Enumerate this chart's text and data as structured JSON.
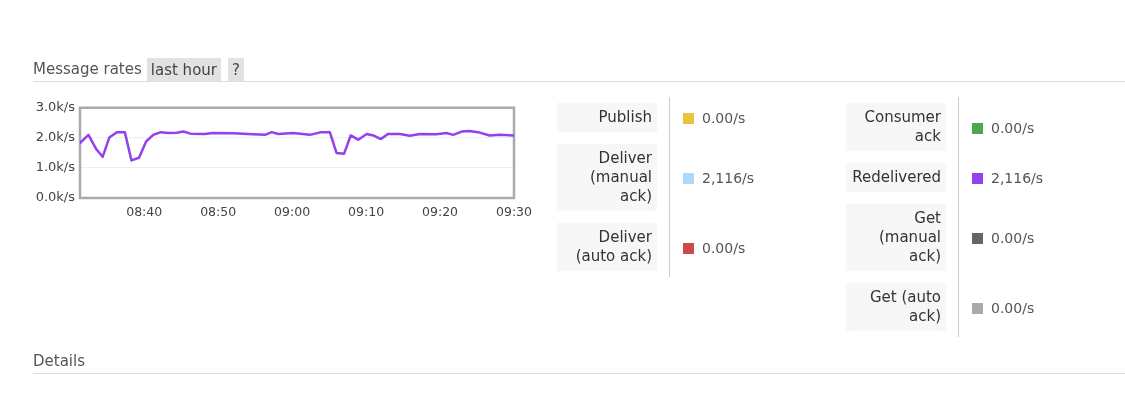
{
  "chart_data": {
    "type": "line",
    "title": "Message rates",
    "subtitle": "last hour",
    "annotations": [
      "?",
      "0.00/s",
      "2,116/s",
      "0.00/s",
      "0.00/s",
      "2,116/s",
      "0.00/s",
      "0.00/s",
      "Details"
    ],
    "x": [
      8.522,
      8.541,
      8.558,
      8.573,
      8.588,
      8.605,
      8.623,
      8.638,
      8.655,
      8.671,
      8.687,
      8.704,
      8.721,
      8.74,
      8.755,
      8.771,
      8.803,
      8.822,
      8.867,
      8.912,
      8.939,
      8.954,
      8.969,
      9.002,
      9.04,
      9.066,
      9.085,
      9.1,
      9.117,
      9.132,
      9.149,
      9.168,
      9.183,
      9.2,
      9.216,
      9.243,
      9.265,
      9.288,
      9.325,
      9.348,
      9.363,
      9.382,
      9.4,
      9.419,
      9.445,
      9.468,
      9.5
    ],
    "series": [
      {
        "name": "Publish",
        "color": "#edc240",
        "values": [
          null,
          null,
          null,
          null,
          null,
          null,
          null,
          null,
          null,
          null,
          null,
          null,
          null,
          null,
          null,
          null,
          null,
          null,
          null,
          null,
          null,
          null,
          null,
          null,
          null,
          null,
          null,
          null,
          null,
          null,
          null,
          null,
          null,
          null,
          null,
          null,
          null,
          null,
          null,
          null,
          null,
          null,
          null,
          null,
          null,
          null,
          null
        ]
      },
      {
        "name": "Deliver (manual ack)",
        "color": "#afd8f8",
        "values": [
          null,
          null,
          null,
          null,
          null,
          null,
          null,
          null,
          null,
          null,
          null,
          null,
          null,
          null,
          null,
          null,
          null,
          null,
          null,
          null,
          null,
          null,
          null,
          null,
          null,
          null,
          null,
          null,
          null,
          null,
          null,
          null,
          null,
          null,
          null,
          null,
          null,
          null,
          null,
          null,
          null,
          null,
          null,
          null,
          null,
          null,
          null
        ]
      },
      {
        "name": "Deliver (auto ack)",
        "color": "#cb4b4b",
        "values": [
          null,
          null,
          null,
          null,
          null,
          null,
          null,
          null,
          null,
          null,
          null,
          null,
          null,
          null,
          null,
          null,
          null,
          null,
          null,
          null,
          null,
          null,
          null,
          null,
          null,
          null,
          null,
          null,
          null,
          null,
          null,
          null,
          null,
          null,
          null,
          null,
          null,
          null,
          null,
          null,
          null,
          null,
          null,
          null,
          null,
          null,
          null
        ]
      },
      {
        "name": "Consumer ack",
        "color": "#4da74d",
        "values": [
          null,
          null,
          null,
          null,
          null,
          null,
          null,
          null,
          null,
          null,
          null,
          null,
          null,
          null,
          null,
          null,
          null,
          null,
          null,
          null,
          null,
          null,
          null,
          null,
          null,
          null,
          null,
          null,
          null,
          null,
          null,
          null,
          null,
          null,
          null,
          null,
          null,
          null,
          null,
          null,
          null,
          null,
          null,
          null,
          null,
          null,
          null
        ]
      },
      {
        "name": "Redelivered",
        "color": "#9440ed",
        "values": [
          1830,
          2100,
          1640,
          1370,
          2010,
          2190,
          2190,
          1250,
          1340,
          1880,
          2100,
          2190,
          2160,
          2170,
          2210,
          2140,
          2130,
          2160,
          2150,
          2120,
          2100,
          2190,
          2130,
          2160,
          2100,
          2190,
          2190,
          1500,
          1470,
          2080,
          1940,
          2130,
          2080,
          1960,
          2130,
          2130,
          2070,
          2130,
          2120,
          2160,
          2100,
          2210,
          2230,
          2190,
          2080,
          2100,
          2080
        ]
      },
      {
        "name": "Get (manual ack)",
        "color": "#666666",
        "values": [
          null,
          null,
          null,
          null,
          null,
          null,
          null,
          null,
          null,
          null,
          null,
          null,
          null,
          null,
          null,
          null,
          null,
          null,
          null,
          null,
          null,
          null,
          null,
          null,
          null,
          null,
          null,
          null,
          null,
          null,
          null,
          null,
          null,
          null,
          null,
          null,
          null,
          null,
          null,
          null,
          null,
          null,
          null,
          null,
          null,
          null,
          null
        ]
      },
      {
        "name": "Get (auto ack)",
        "color": "#aaaaaa",
        "values": [
          null,
          null,
          null,
          null,
          null,
          null,
          null,
          null,
          null,
          null,
          null,
          null,
          null,
          null,
          null,
          null,
          null,
          null,
          null,
          null,
          null,
          null,
          null,
          null,
          null,
          null,
          null,
          null,
          null,
          null,
          null,
          null,
          null,
          null,
          null,
          null,
          null,
          null,
          null,
          null,
          null,
          null,
          null,
          null,
          null,
          null,
          null
        ]
      }
    ],
    "xlim": [
      8.522,
      9.5
    ],
    "xticks": [
      {
        "value": 8.6667,
        "label": "08:40"
      },
      {
        "value": 8.8333,
        "label": "08:50"
      },
      {
        "value": 9,
        "label": "09:00"
      },
      {
        "value": 9.1667,
        "label": "09:10"
      },
      {
        "value": 9.3333,
        "label": "09:20"
      },
      {
        "value": 9.5,
        "label": "09:30"
      }
    ],
    "ylim": [
      0,
      3000
    ],
    "yticks": [
      {
        "value": 0,
        "label": "0.0k/s"
      },
      {
        "value": 1000,
        "label": "1.0k/s"
      },
      {
        "value": 2000,
        "label": "2.0k/s"
      },
      {
        "value": 3000,
        "label": "3.0k/s"
      }
    ],
    "grid": "y",
    "legend": "right",
    "line_style": "solid"
  }
}
